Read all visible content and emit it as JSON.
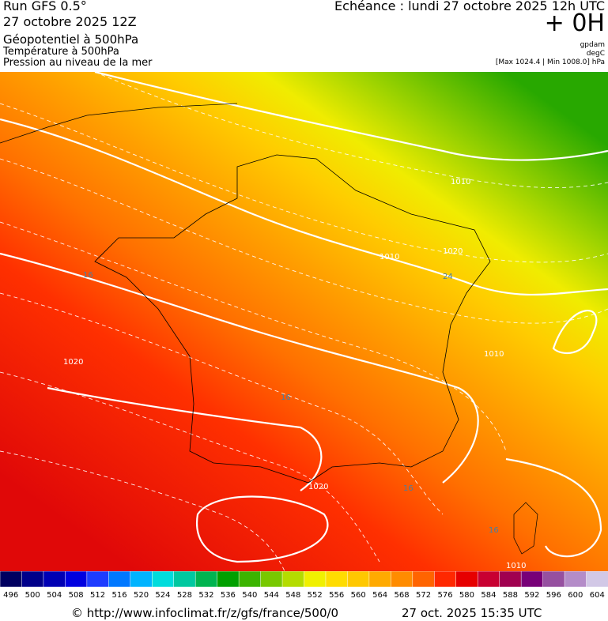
{
  "header": {
    "run": "Run GFS 0.5°",
    "date": "27 octobre 2025 12Z",
    "field1": "Géopotentiel à 500hPa",
    "field2": "Température à 500hPa",
    "field3": "Pression au niveau de la mer",
    "echeance": "Echéance : lundi 27 octobre 2025 12h UTC",
    "offset": "+ 0H",
    "unit1": "gpdam",
    "unit2": "degC",
    "range": "[Max 1024.4 | Min 1008.0] hPa"
  },
  "map": {
    "contour_labels": [
      "1020",
      "1010",
      "1010",
      "1020",
      "1010",
      "1020",
      "1010",
      "16",
      "16",
      "24",
      "16",
      "16"
    ]
  },
  "legend": {
    "labels": [
      496,
      500,
      504,
      508,
      512,
      516,
      520,
      524,
      528,
      532,
      536,
      540,
      544,
      548,
      552,
      556,
      560,
      564,
      568,
      572,
      576,
      580,
      584,
      588,
      592,
      596,
      600,
      604
    ],
    "colors": [
      "#000060",
      "#00008a",
      "#0000b4",
      "#0000e0",
      "#1e3cff",
      "#0078ff",
      "#00b4ff",
      "#00dcdc",
      "#00c8a0",
      "#00b450",
      "#00a000",
      "#3cb400",
      "#78c800",
      "#b4dc00",
      "#f0f000",
      "#ffdc00",
      "#ffc800",
      "#ffaa00",
      "#ff8c00",
      "#ff6400",
      "#ff2800",
      "#e60000",
      "#c80032",
      "#a00050",
      "#780078",
      "#9650a0",
      "#b48cc8",
      "#d2c8e6"
    ]
  },
  "footer": {
    "source": "© http://www.infoclimat.fr/z/gfs/france/500/0",
    "timestamp": "27 oct. 2025 15:35 UTC"
  }
}
